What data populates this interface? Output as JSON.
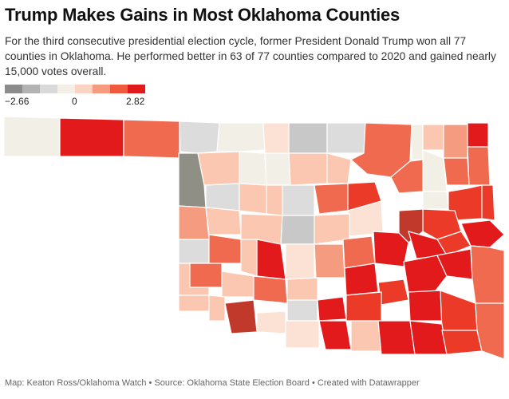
{
  "title": "Trump Makes Gains in Most Oklahoma Counties",
  "subtitle": "For the third consecutive presidential election cycle, former President Donald Trump won all 77 counties in Oklahoma. He performed better in 63 of 77 counties compared to 2020 and gained nearly 15,000 votes overall.",
  "legend": {
    "min_label": "−2.66",
    "mid_label": "0",
    "max_label": "2.82",
    "colors": [
      "#8c8c8c",
      "#b3b3b3",
      "#d9d9d9",
      "#f3eee6",
      "#fbd3c2",
      "#f79a7d",
      "#ef5a3e",
      "#e31a1c"
    ]
  },
  "palette": {
    "gray_dark": "#8f8f86",
    "gray": "#c8c8c8",
    "light_gray": "#dcdcdc",
    "cream": "#f1efe6",
    "peach": "#fbe2d4",
    "salmon_light": "#fbc7b0",
    "salmon": "#f59c80",
    "coral": "#f06a4f",
    "red_orange": "#eb3b28",
    "red": "#e31a1c",
    "dark_red": "#c0392b",
    "border": "#ffffff"
  },
  "footer": "Map: Keaton Ross/Oklahoma Watch • Source: Oklahoma State Election Board • Created with Datawrapper"
}
